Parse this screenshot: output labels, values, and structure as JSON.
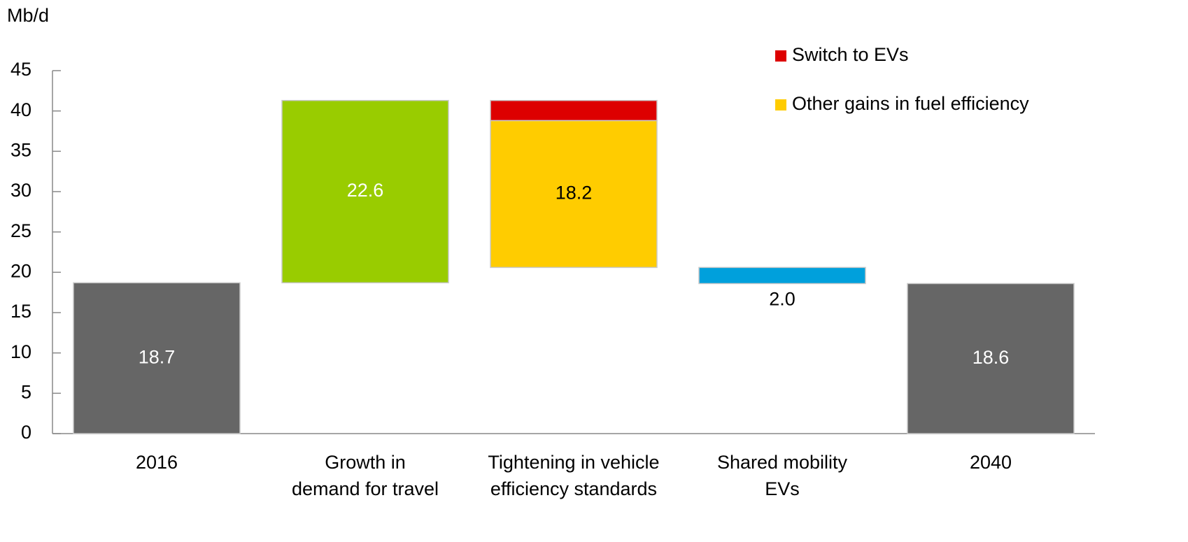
{
  "chart_data": {
    "type": "waterfall",
    "y_label": "Mb/d",
    "categories": [
      "2016",
      "Growth in\ndemand for travel",
      "Tightening in vehicle\nefficiency standards",
      "Shared mobility\nEVs",
      "2040"
    ],
    "measure": [
      "total",
      "increase",
      "decrease",
      "decrease",
      "total"
    ],
    "series": [
      {
        "values": [
          18.7,
          22.6,
          null,
          2.0,
          18.6
        ],
        "value_labels": [
          "18.7",
          "22.6",
          null,
          "2.0",
          "18.6"
        ],
        "colors": [
          "#666666",
          "#99cc00",
          null,
          "#00a0dc",
          "#666666"
        ]
      },
      {
        "name": "Switch to EVs",
        "color": "#dd0000",
        "values": [
          null,
          null,
          2.5,
          null,
          null
        ]
      },
      {
        "name": "Other gains in fuel efficiency",
        "color": "#ffcc00",
        "values": [
          null,
          null,
          18.2,
          null,
          null
        ]
      }
    ],
    "ylim": [
      0,
      45
    ],
    "yticks": [
      0,
      5,
      10,
      15,
      20,
      25,
      30,
      35,
      40,
      45
    ],
    "legend": "top-right"
  }
}
